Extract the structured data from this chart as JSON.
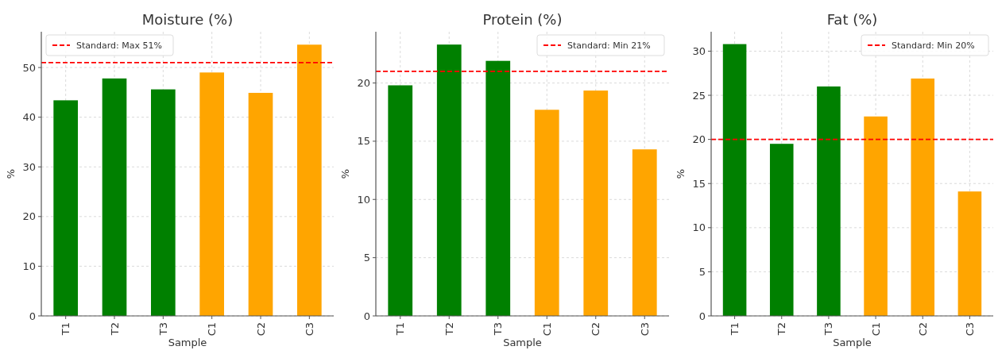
{
  "chart_data": [
    {
      "type": "bar",
      "title": "Moisture (%)",
      "xlabel": "Sample",
      "ylabel": "%",
      "categories": [
        "T1",
        "T2",
        "T3",
        "C1",
        "C2",
        "C3"
      ],
      "values": [
        43.4,
        47.8,
        45.6,
        49.0,
        44.9,
        54.6
      ],
      "colors": [
        "#008000",
        "#008000",
        "#008000",
        "#ffa500",
        "#ffa500",
        "#ffa500"
      ],
      "ylim": [
        0,
        57.2
      ],
      "yticks": [
        0,
        10,
        20,
        30,
        40,
        50
      ],
      "grid": true,
      "legend": "top left",
      "ref_lines": [
        {
          "axis": "y",
          "value": 51,
          "label": "Standard: Max 51%",
          "color": "#ff0000",
          "line_style": "dashed"
        }
      ]
    },
    {
      "type": "bar",
      "title": "Protein (%)",
      "xlabel": "Sample",
      "ylabel": "%",
      "categories": [
        "T1",
        "T2",
        "T3",
        "C1",
        "C2",
        "C3"
      ],
      "values": [
        19.8,
        23.3,
        21.9,
        17.7,
        19.35,
        14.3
      ],
      "colors": [
        "#008000",
        "#008000",
        "#008000",
        "#ffa500",
        "#ffa500",
        "#ffa500"
      ],
      "ylim": [
        0,
        24.4
      ],
      "yticks": [
        0,
        5,
        10,
        15,
        20
      ],
      "grid": true,
      "legend": "top right",
      "ref_lines": [
        {
          "axis": "y",
          "value": 21,
          "label": "Standard: Min 21%",
          "color": "#ff0000",
          "line_style": "dashed"
        }
      ]
    },
    {
      "type": "bar",
      "title": "Fat (%)",
      "xlabel": "Sample",
      "ylabel": "%",
      "categories": [
        "T1",
        "T2",
        "T3",
        "C1",
        "C2",
        "C3"
      ],
      "values": [
        30.8,
        19.5,
        26.0,
        22.6,
        26.9,
        14.1
      ],
      "colors": [
        "#008000",
        "#008000",
        "#008000",
        "#ffa500",
        "#ffa500",
        "#ffa500"
      ],
      "ylim": [
        0,
        32.2
      ],
      "yticks": [
        0,
        5,
        10,
        15,
        20,
        25,
        30
      ],
      "grid": true,
      "legend": "top right",
      "ref_lines": [
        {
          "axis": "y",
          "value": 20,
          "label": "Standard: Min 20%",
          "color": "#ff0000",
          "line_style": "dashed"
        }
      ]
    }
  ]
}
